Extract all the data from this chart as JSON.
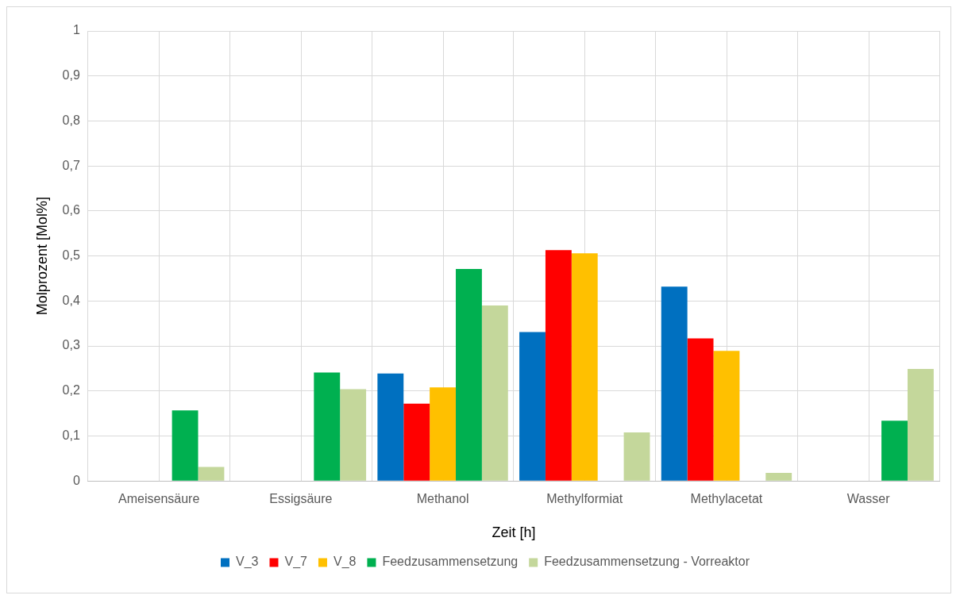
{
  "chart_data": {
    "type": "bar",
    "xlabel": "Zeit [h]",
    "ylabel": "Molprozent [Mol%]",
    "categories": [
      "Ameisensäure",
      "Essigsäure",
      "Methanol",
      "Methylformiat",
      "Methylacetat",
      "Wasser"
    ],
    "series": [
      {
        "name": "V_3",
        "color": "#0070c0",
        "values": [
          0,
          0,
          0.239,
          0.331,
          0.432,
          0
        ]
      },
      {
        "name": "V_7",
        "color": "#ff0000",
        "values": [
          0,
          0,
          0.172,
          0.513,
          0.317,
          0
        ]
      },
      {
        "name": "V_8",
        "color": "#ffc000",
        "values": [
          0,
          0,
          0.208,
          0.506,
          0.289,
          0
        ]
      },
      {
        "name": "Feedzusammensetzung",
        "color": "#00b050",
        "values": [
          0.157,
          0.241,
          0.471,
          0,
          0,
          0.134
        ]
      },
      {
        "name": "Feedzusammensetzung - Vorreaktor",
        "color": "#c4d79b",
        "values": [
          0.031,
          0.204,
          0.39,
          0.108,
          0.018,
          0.249
        ]
      }
    ],
    "ylim": [
      0,
      1
    ],
    "yticks": [
      0,
      {
        "value": 0.1,
        "label": "0,1"
      },
      {
        "value": 0.2,
        "label": "0,2"
      },
      {
        "value": 0.3,
        "label": "0,3"
      },
      {
        "value": 0.4,
        "label": "0,4"
      },
      {
        "value": 0.5,
        "label": "0,5"
      },
      {
        "value": 0.6,
        "label": "0,6"
      },
      {
        "value": 0.7,
        "label": "0,7"
      },
      {
        "value": 0.8,
        "label": "0,8"
      },
      {
        "value": 0.9,
        "label": "0,9"
      },
      1
    ],
    "grid": true,
    "legend": "bottom"
  }
}
